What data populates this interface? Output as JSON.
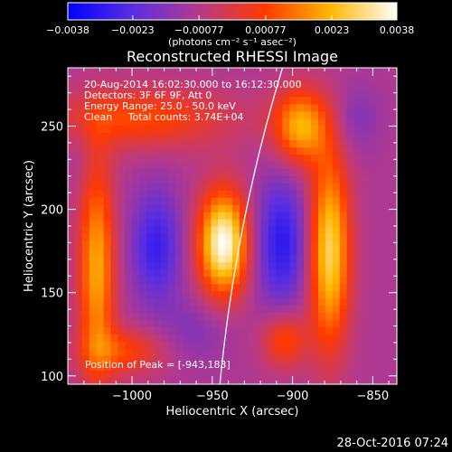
{
  "chart_data": {
    "type": "heatmap",
    "title": "Reconstructed RHESSI Image",
    "xlabel": "Heliocentric X (arcsec)",
    "ylabel": "Heliocentric Y (arcsec)",
    "xlim": [
      -1040,
      -835
    ],
    "ylim": [
      95,
      285
    ],
    "x_ticks": [
      -1000,
      -950,
      -900,
      -850
    ],
    "x_tick_labels": [
      "−1000",
      "−950",
      "−900",
      "−850"
    ],
    "y_ticks": [
      100,
      150,
      200,
      250
    ],
    "y_tick_labels": [
      "100",
      "150",
      "200",
      "250"
    ],
    "colorbar": {
      "range": [
        -0.0038,
        0.0038
      ],
      "ticks": [
        -0.0038,
        -0.0023,
        -0.00077,
        0.00077,
        0.0023,
        0.0038
      ],
      "tick_labels": [
        "−0.0038",
        "−0.0023",
        "−0.00077",
        "0.00077",
        "0.0023",
        "0.0038"
      ],
      "units_label": "(photons cm⁻² s⁻¹ asec⁻²)",
      "colors": [
        "#0000ff",
        "#5a2fe0",
        "#b63a8a",
        "#ff3a00",
        "#ffb800",
        "#ffffff"
      ]
    },
    "annotations": [
      "20-Aug-2014 16:02:30.000 to 16:12:30.000",
      "Detectors: 3F 6F 9F, Att 0",
      "Energy Range: 25.0 - 50.0 keV",
      "Clean     Total counts: 3.74E+04"
    ],
    "peak_label": "Position of Peak = [-943,183]",
    "peak": [
      -943,
      183
    ],
    "grid": false,
    "image_sources": [
      {
        "x": -943,
        "y": 180,
        "sx": 11,
        "sy": 22,
        "value": 0.0038
      },
      {
        "x": -907,
        "y": 180,
        "sx": 12,
        "sy": 28,
        "value": -0.003
      },
      {
        "x": -985,
        "y": 178,
        "sx": 11,
        "sy": 24,
        "value": -0.0028
      },
      {
        "x": -1022,
        "y": 165,
        "sx": 8,
        "sy": 45,
        "value": 0.0021
      },
      {
        "x": -877,
        "y": 175,
        "sx": 9,
        "sy": 40,
        "value": 0.0029
      },
      {
        "x": -895,
        "y": 250,
        "sx": 12,
        "sy": 16,
        "value": 0.0022
      },
      {
        "x": -995,
        "y": 255,
        "sx": 40,
        "sy": 13,
        "value": 0.0009
      },
      {
        "x": -860,
        "y": 255,
        "sx": 10,
        "sy": 14,
        "value": -0.0016
      },
      {
        "x": -960,
        "y": 128,
        "sx": 16,
        "sy": 14,
        "value": -0.0016
      },
      {
        "x": -905,
        "y": 122,
        "sx": 10,
        "sy": 12,
        "value": 0.001
      },
      {
        "x": -1033,
        "y": 240,
        "sx": 6,
        "sy": 20,
        "value": -0.0012
      },
      {
        "x": -1005,
        "y": 115,
        "sx": 18,
        "sy": 10,
        "value": 0.0008
      }
    ],
    "background_level": -0.0009,
    "limb": {
      "center": [
        0,
        0
      ],
      "radius": 950,
      "color": "#ffffff"
    }
  },
  "timestamp": "28-Oct-2016 07:24"
}
